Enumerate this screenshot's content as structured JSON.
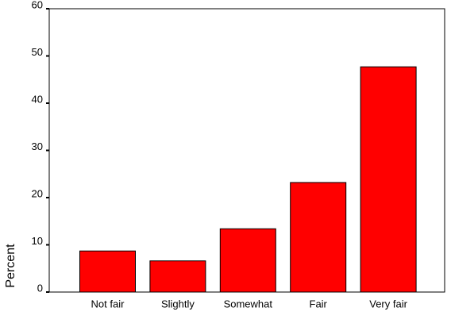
{
  "chart_data": {
    "type": "bar",
    "y_label": "Percent",
    "categories": [
      "Not fair",
      "Slightly",
      "Somewhat",
      "Fair",
      "Very fair"
    ],
    "values": [
      8.7,
      6.6,
      13.4,
      23.2,
      47.7
    ],
    "color": "#ff0000",
    "ylim": [
      0,
      60
    ],
    "yticks": [
      0,
      10,
      20,
      30,
      40,
      50,
      60
    ]
  }
}
